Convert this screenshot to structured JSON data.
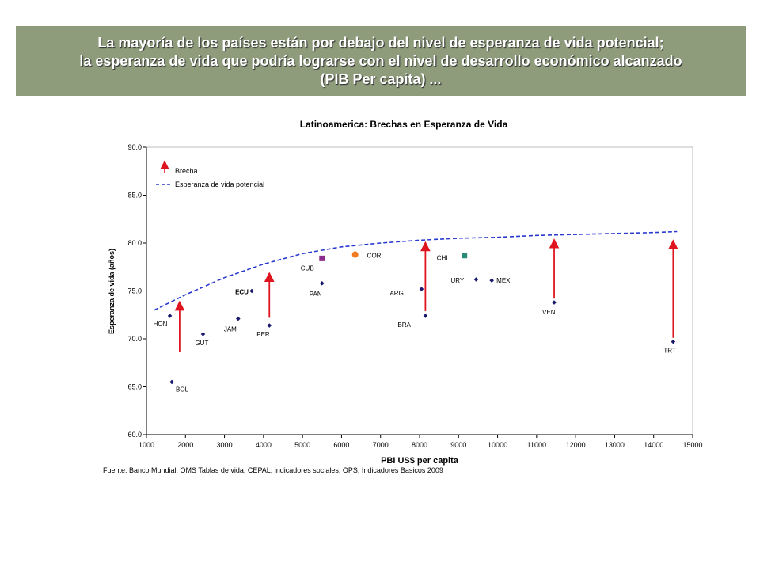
{
  "banner": {
    "line1": "La mayoría de los países están por debajo del nivel de esperanza de vida potencial;",
    "line2": "la esperanza de vida que podría lograrse con el nivel de desarrollo económico alcanzado",
    "line3": "(PIB Per capita) ..."
  },
  "chart_data": {
    "type": "scatter",
    "title": "Latinoamerica: Brechas en Esperanza de Vida",
    "xlabel": "PBI US$ per capita",
    "ylabel": "Esperanza de vida (años)",
    "xlim": [
      1000,
      15000
    ],
    "ylim": [
      60,
      90
    ],
    "xticks": [
      "1000",
      "2000",
      "3000",
      "4000",
      "5000",
      "6000",
      "7000",
      "8000",
      "9000",
      "10000",
      "11000",
      "12000",
      "13000",
      "14000",
      "15000"
    ],
    "yticks": [
      "60.0",
      "65.0",
      "70.0",
      "75.0",
      "80.0",
      "85.0",
      "90.0"
    ],
    "legend": [
      {
        "name": "Brecha",
        "color": "#e0141e"
      },
      {
        "name": "Esperanza de vida potencial",
        "color": "#2a3bd0"
      }
    ],
    "source": "Fuente: Banco Mundial; OMS Tablas de vida; CEPAL, indicadores sociales; OPS, Indicadores Basicos 2009",
    "potential_curve": {
      "x": [
        1200,
        2000,
        3000,
        4000,
        5000,
        6000,
        7000,
        8000,
        9000,
        10000,
        11000,
        12000,
        13000,
        14000,
        14600
      ],
      "y": [
        73.0,
        74.6,
        76.4,
        77.8,
        78.9,
        79.6,
        80.0,
        80.3,
        80.5,
        80.6,
        80.8,
        80.9,
        81.0,
        81.1,
        81.2
      ]
    },
    "points": [
      {
        "label": "HON",
        "x": 1600,
        "y": 72.4,
        "color": "#1a1a6e",
        "marker": "diamond"
      },
      {
        "label": "BOL",
        "x": 1650,
        "y": 65.5,
        "color": "#1a1a6e",
        "marker": "diamond"
      },
      {
        "label": "GUT",
        "x": 2450,
        "y": 70.5,
        "color": "#1a1a6e",
        "marker": "diamond"
      },
      {
        "label": "JAM",
        "x": 3350,
        "y": 72.1,
        "color": "#1a1a6e",
        "marker": "diamond"
      },
      {
        "label": "ECU",
        "x": 3700,
        "y": 75.0,
        "color": "#1a1a6e",
        "marker": "diamond"
      },
      {
        "label": "PER",
        "x": 4150,
        "y": 71.4,
        "color": "#1a1a6e",
        "marker": "diamond"
      },
      {
        "label": "CUB",
        "x": 5500,
        "y": 78.4,
        "color": "#8e2c8e",
        "marker": "square"
      },
      {
        "label": "PAN",
        "x": 5500,
        "y": 75.8,
        "color": "#1a1a6e",
        "marker": "diamond"
      },
      {
        "label": "COR",
        "x": 6350,
        "y": 78.8,
        "color": "#f07a1e",
        "marker": "circle"
      },
      {
        "label": "ARG",
        "x": 8050,
        "y": 75.2,
        "color": "#1a1a6e",
        "marker": "diamond"
      },
      {
        "label": "BRA",
        "x": 8150,
        "y": 72.4,
        "color": "#1a1a6e",
        "marker": "diamond"
      },
      {
        "label": "CHI",
        "x": 9150,
        "y": 78.7,
        "color": "#2a8a7a",
        "marker": "square"
      },
      {
        "label": "URY",
        "x": 9450,
        "y": 76.2,
        "color": "#1a1a6e",
        "marker": "diamond"
      },
      {
        "label": "MEX",
        "x": 9850,
        "y": 76.1,
        "color": "#1a1a6e",
        "marker": "diamond"
      },
      {
        "label": "VEN",
        "x": 11450,
        "y": 73.8,
        "color": "#1a1a6e",
        "marker": "diamond"
      },
      {
        "label": "TRT",
        "x": 14500,
        "y": 69.7,
        "color": "#1a1a6e",
        "marker": "diamond"
      }
    ],
    "gap_arrows": [
      {
        "country": "BOL",
        "x": 1850,
        "y_from": 68.6,
        "y_to": 73.8
      },
      {
        "country": "PER",
        "x": 4150,
        "y_from": 72.2,
        "y_to": 76.8
      },
      {
        "country": "BRA",
        "x": 8150,
        "y_from": 72.9,
        "y_to": 80.0
      },
      {
        "country": "VEN",
        "x": 11450,
        "y_from": 74.2,
        "y_to": 80.3
      },
      {
        "country": "TRT",
        "x": 14500,
        "y_from": 70.1,
        "y_to": 80.2
      }
    ]
  }
}
